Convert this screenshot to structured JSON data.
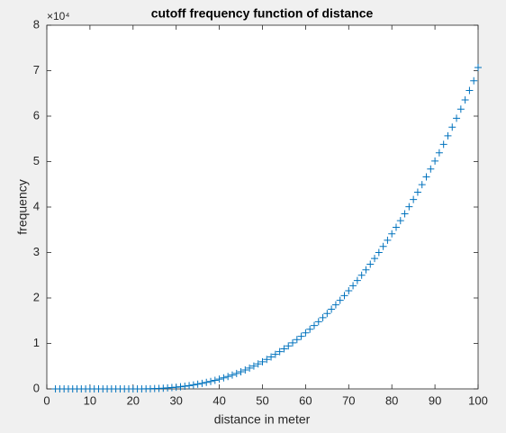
{
  "chart_data": {
    "type": "scatter",
    "title": "cutoff frequency function of distance",
    "xlabel": "distance in meter",
    "ylabel": "frequency",
    "y_exponent_label": "×10⁴",
    "marker": "+",
    "color": "#0072bd",
    "x": [
      2,
      3,
      4,
      5,
      6,
      7,
      8,
      9,
      10,
      11,
      12,
      13,
      14,
      15,
      16,
      17,
      18,
      19,
      20,
      21,
      22,
      23,
      24,
      25,
      26,
      27,
      28,
      29,
      30,
      31,
      32,
      33,
      34,
      35,
      36,
      37,
      38,
      39,
      40,
      41,
      42,
      43,
      44,
      45,
      46,
      47,
      48,
      49,
      50,
      51,
      52,
      53,
      54,
      55,
      56,
      57,
      58,
      59,
      60,
      61,
      62,
      63,
      64,
      65,
      66,
      67,
      68,
      69,
      70,
      71,
      72,
      73,
      74,
      75,
      76,
      77,
      78,
      79,
      80,
      81,
      82,
      83,
      84,
      85,
      86,
      87,
      88,
      89,
      90,
      91,
      92,
      93,
      94,
      95,
      96,
      97,
      98,
      99,
      100
    ],
    "values": [
      0,
      0,
      0,
      0,
      0,
      0,
      0,
      0,
      0,
      0,
      0,
      0,
      0,
      0,
      0,
      0,
      0,
      0,
      0,
      1,
      6,
      18,
      37,
      65,
      103,
      152,
      213,
      287,
      374,
      475,
      592,
      724,
      873,
      1039,
      1223,
      1425,
      1646,
      1886,
      2147,
      2428,
      2731,
      3055,
      3402,
      3771,
      4163,
      4580,
      5019,
      5484,
      5974,
      6488,
      7029,
      7596,
      8188,
      8809,
      9457,
      10132,
      10833,
      11566,
      12327,
      13117,
      13936,
      14785,
      15665,
      16574,
      17515,
      18487,
      19490,
      20527,
      21594,
      22693,
      23827,
      24992,
      26192,
      27424,
      28689,
      29990,
      31325,
      32694,
      34100,
      35537,
      37015,
      38524,
      40071,
      41657,
      43273,
      44934,
      46625,
      48356,
      50127,
      51934,
      53776,
      55660,
      57579,
      59540,
      61535,
      63574,
      65655,
      67765,
      70700
    ],
    "xlim": [
      0,
      100
    ],
    "xticks": [
      0,
      10,
      20,
      30,
      40,
      50,
      60,
      70,
      80,
      90,
      100
    ],
    "ylim": [
      0,
      80000
    ],
    "yticks": [
      0,
      {
        "value": 10000,
        "label": "1"
      },
      {
        "value": 20000,
        "label": "2"
      },
      {
        "value": 30000,
        "label": "3"
      },
      {
        "value": 40000,
        "label": "4"
      },
      {
        "value": 50000,
        "label": "5"
      },
      {
        "value": 60000,
        "label": "6"
      },
      {
        "value": 70000,
        "label": "7"
      },
      {
        "value": 80000,
        "label": "8"
      }
    ],
    "grid": false
  }
}
